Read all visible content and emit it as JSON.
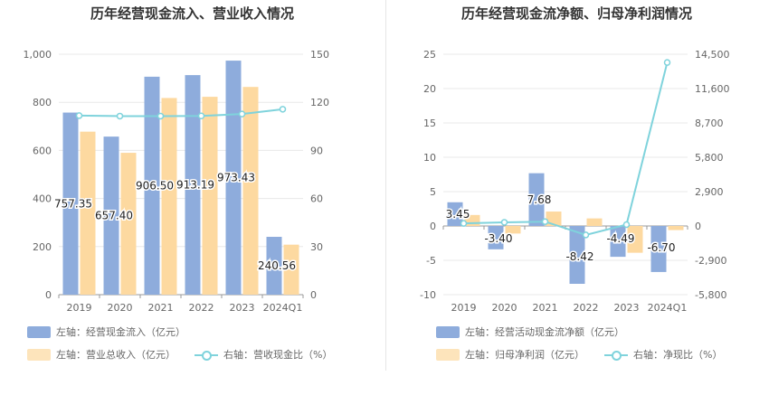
{
  "colors": {
    "bar1": "#8eacdc",
    "bar2": "#fdd9a0",
    "line": "#7fd3dc"
  },
  "chart_data": [
    {
      "type": "bar",
      "title": "历年经营现金流入、营业收入情况",
      "categories": [
        "2019",
        "2020",
        "2021",
        "2022",
        "2023",
        "2024Q1"
      ],
      "left_axis": {
        "ticks": [
          "0",
          "200",
          "400",
          "600",
          "800",
          "1,000"
        ],
        "ylim": [
          0,
          1000
        ]
      },
      "right_axis": {
        "ticks": [
          "0",
          "30",
          "60",
          "90",
          "120",
          "150"
        ],
        "ylim": [
          0,
          150
        ]
      },
      "series": [
        {
          "name": "左轴：经营现金流入（亿元）",
          "axis": "left",
          "values": [
            757.35,
            657.4,
            906.5,
            913.19,
            973.43,
            240.56
          ],
          "labels": [
            "757.35",
            "657.40",
            "906.50",
            "913.19",
            "973.43",
            "240.56"
          ]
        },
        {
          "name": "左轴：营业总收入（亿元）",
          "axis": "left",
          "values": [
            678,
            590,
            818,
            823,
            864,
            208
          ]
        },
        {
          "name": "右轴：营收现金比（%）",
          "axis": "right",
          "type": "line",
          "values": [
            111.7,
            111.4,
            111.4,
            111.5,
            112.7,
            115.7
          ]
        }
      ]
    },
    {
      "type": "bar",
      "title": "历年经营现金流净额、归母净利润情况",
      "categories": [
        "2019",
        "2020",
        "2021",
        "2022",
        "2023",
        "2024Q1"
      ],
      "left_axis": {
        "ticks": [
          "-10",
          "-5",
          "0",
          "5",
          "10",
          "15",
          "20",
          "25"
        ],
        "ylim": [
          -10,
          25
        ]
      },
      "right_axis": {
        "ticks": [
          "-5,800",
          "-2,900",
          "0",
          "2,900",
          "5,800",
          "8,700",
          "11,600",
          "14,500"
        ],
        "ylim": [
          -5800,
          14500
        ]
      },
      "series": [
        {
          "name": "左轴：经营活动现金流净额（亿元）",
          "axis": "left",
          "values": [
            3.45,
            -3.4,
            7.68,
            -8.42,
            -4.49,
            -6.7
          ],
          "labels": [
            "3.45",
            "-3.40",
            "7.68",
            "-8.42",
            "-4.49",
            "-6.70"
          ]
        },
        {
          "name": "左轴：归母净利润（亿元）",
          "axis": "left",
          "values": [
            1.6,
            -1.1,
            2.1,
            1.1,
            -3.9,
            -0.6
          ]
        },
        {
          "name": "右轴：净现比（%）",
          "axis": "right",
          "type": "line",
          "values": [
            216,
            309,
            366,
            -757,
            115,
            13800
          ]
        }
      ]
    }
  ]
}
